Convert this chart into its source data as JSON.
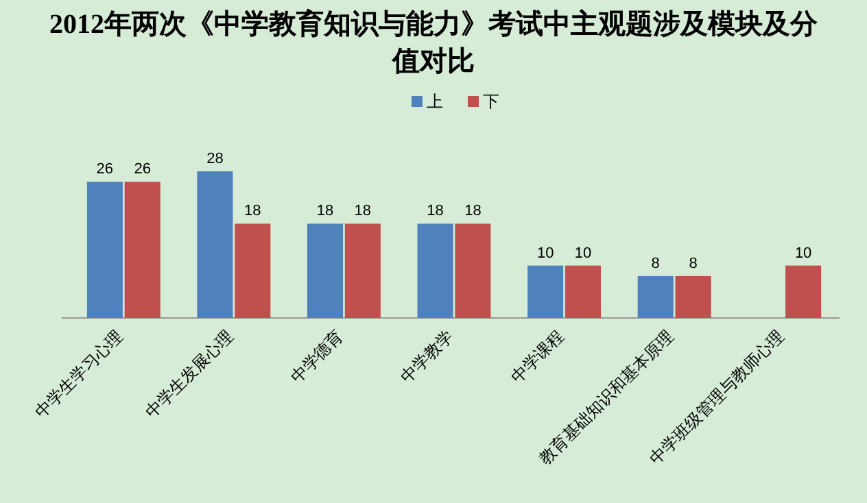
{
  "chart_data": {
    "type": "bar",
    "title": "2012年两次《中学教育知识与能力》考试中主观题涉及模块及分值对比",
    "categories": [
      "中学生学习心理",
      "中学生发展心理",
      "中学德育",
      "中学教学",
      "中学课程",
      "教育基础知识和基本原理",
      "中学班级管理与教师心理"
    ],
    "series": [
      {
        "name": "上",
        "color": "#4f81bd",
        "values": [
          26,
          28,
          18,
          18,
          10,
          8,
          null
        ]
      },
      {
        "name": "下",
        "color": "#c0504d",
        "values": [
          26,
          18,
          18,
          18,
          10,
          8,
          10
        ]
      }
    ],
    "data_labels": true,
    "legend": "top",
    "grid": false
  }
}
